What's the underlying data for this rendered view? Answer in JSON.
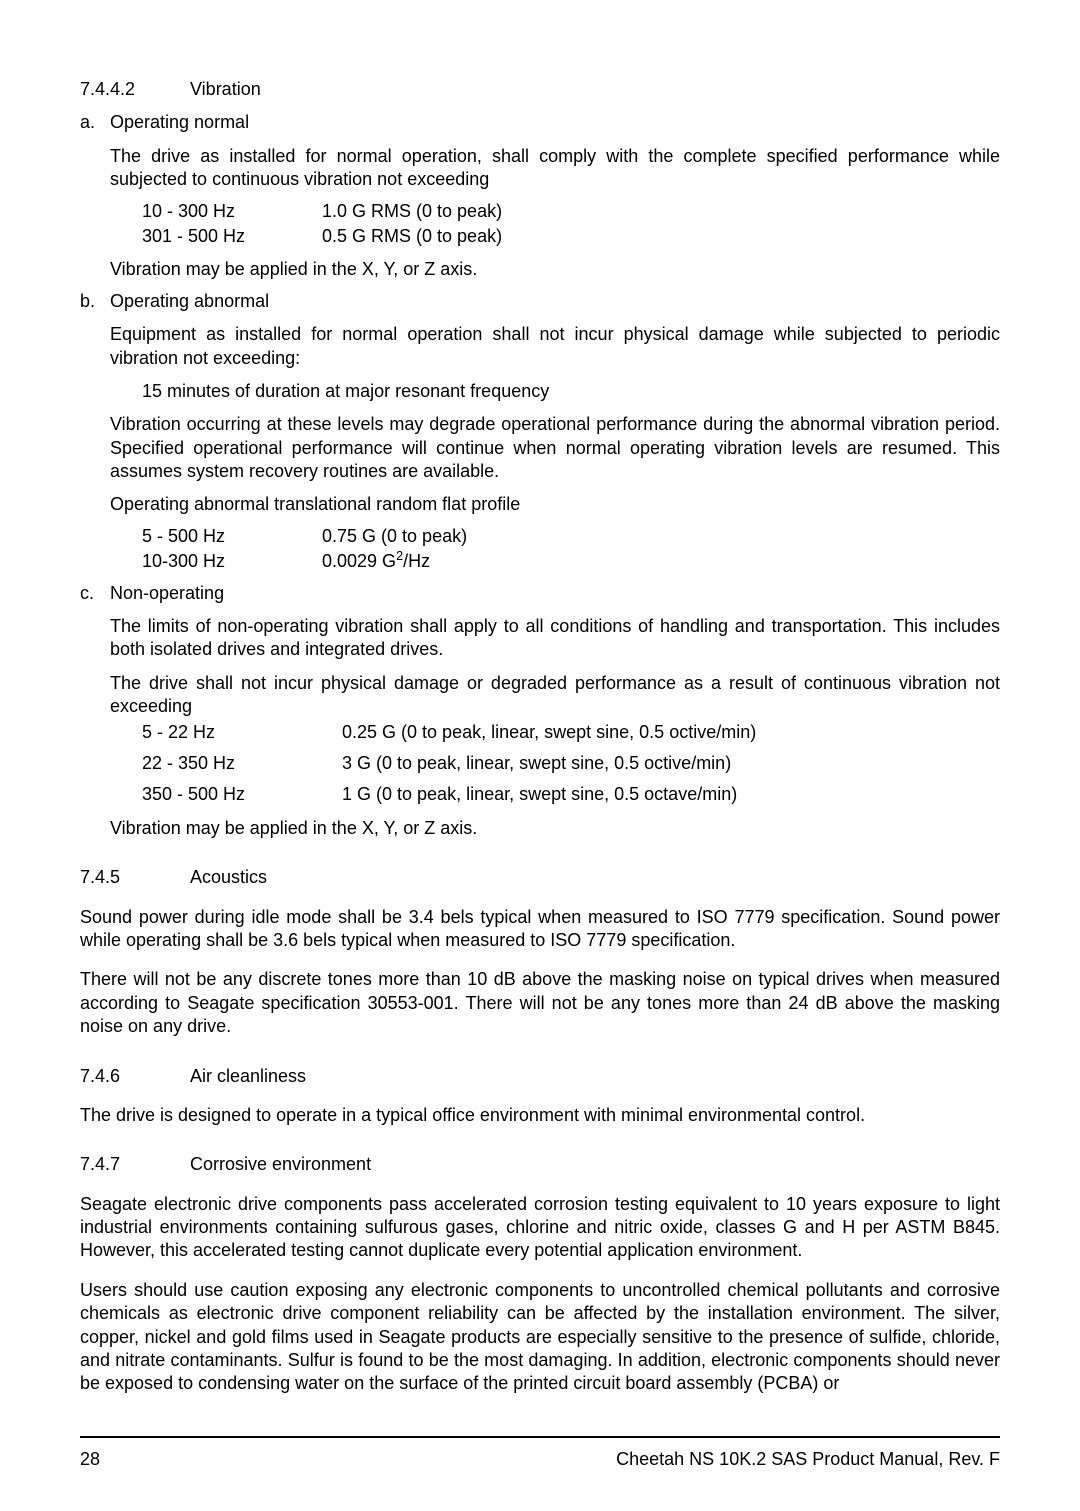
{
  "s7442": {
    "num": "7.4.4.2",
    "title": "Vibration"
  },
  "a": {
    "letter": "a.",
    "title": "Operating normal",
    "p1": "The drive as installed for normal operation, shall comply with the complete specified performance while subjected to continuous vibration not exceeding",
    "r1c1": "10 - 300 Hz",
    "r1c2": "1.0 G RMS (0 to peak)",
    "r2c1": "301 - 500 Hz",
    "r2c2": "0.5 G RMS (0 to peak)",
    "p2": "Vibration may be applied in the X, Y, or Z axis."
  },
  "b": {
    "letter": "b.",
    "title": "Operating abnormal",
    "p1": "Equipment as installed for normal operation shall not incur physical damage while subjected to periodic vibration not exceeding:",
    "p2": "15 minutes of duration at major resonant frequency",
    "p3": "Vibration occurring at these levels may degrade operational performance during the abnormal vibration period. Specified operational performance will continue when normal operating vibration levels are resumed. This assumes system recovery routines are available.",
    "p4": "Operating abnormal translational random flat profile",
    "r1c1": "5 - 500 Hz",
    "r1c2": "0.75 G (0 to peak)",
    "r2c1": "10-300 Hz",
    "r2c2_a": "0.0029 G",
    "r2c2_b": "/Hz"
  },
  "c": {
    "letter": "c.",
    "title": "Non-operating",
    "p1": "The limits of non-operating vibration shall apply to all conditions of handling and transportation. This includes both isolated drives and integrated drives.",
    "p2": "The drive shall not incur physical damage or degraded performance as a result of continuous vibration not exceeding",
    "r1c1": "5 - 22 Hz",
    "r1c2": "0.25 G (0 to peak, linear, swept sine, 0.5 octive/min)",
    "r2c1": "22 - 350 Hz",
    "r2c2": "3 G (0 to peak, linear, swept sine, 0.5 octive/min)",
    "r3c1": "350 - 500 Hz",
    "r3c2": "1 G (0 to peak, linear, swept sine, 0.5 octave/min)",
    "p3": "Vibration may be applied in the X, Y, or Z axis."
  },
  "s745": {
    "num": "7.4.5",
    "title": "Acoustics",
    "p1": "Sound power during idle mode shall be 3.4 bels typical when measured to ISO 7779 specification. Sound power while operating shall be 3.6 bels typical when measured to ISO 7779 specification.",
    "p2": "There will not be any discrete tones more than 10 dB above the masking noise on typical drives when measured according to Seagate specification 30553-001. There will not be any tones more than 24 dB above the masking noise on any drive."
  },
  "s746": {
    "num": "7.4.6",
    "title": "Air cleanliness",
    "p1": "The drive is designed to operate in a typical office environment with minimal environmental control."
  },
  "s747": {
    "num": "7.4.7",
    "title": "Corrosive environment",
    "p1": "Seagate electronic drive components pass accelerated corrosion testing equivalent to 10 years exposure to light industrial environments containing sulfurous gases, chlorine and nitric oxide, classes G and H per ASTM B845. However, this accelerated testing cannot duplicate every potential application environment.",
    "p2": "Users should use caution exposing any electronic components to uncontrolled chemical pollutants and corrosive chemicals as electronic drive component reliability can be affected by the installation environment. The silver, copper, nickel and gold films used in Seagate products are especially sensitive to the presence of sulfide, chloride, and nitrate contaminants. Sulfur is found to be the most damaging. In addition, electronic components should never be exposed to condensing water on the surface of the printed circuit board assembly (PCBA) or"
  },
  "footer": {
    "page": "28",
    "doc": "Cheetah NS 10K.2 SAS Product Manual, Rev. F"
  }
}
